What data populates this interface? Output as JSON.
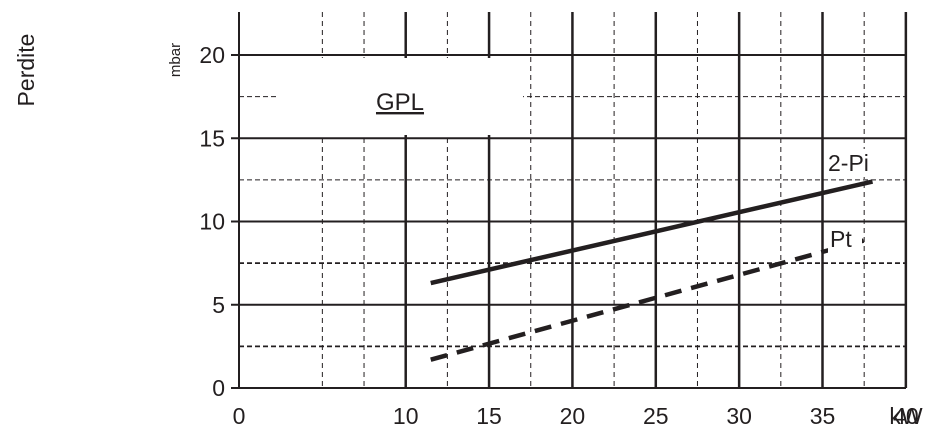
{
  "chart_data": {
    "type": "line",
    "title": "",
    "ylabel_outer": "Perdite",
    "ylabel_unit": "mbar",
    "xlabel": "kW",
    "region_label": "GPL",
    "xlim": [
      0,
      40
    ],
    "ylim": [
      0,
      22.5
    ],
    "x_ticks": [
      0,
      10,
      15,
      20,
      25,
      30,
      35,
      40
    ],
    "x_tick_labels": [
      "0",
      "10",
      "15",
      "20",
      "25",
      "30",
      "35",
      "40"
    ],
    "y_ticks": [
      0,
      5,
      10,
      15,
      20
    ],
    "y_tick_labels": [
      "0",
      "5",
      "10",
      "15",
      "20"
    ],
    "grid": true,
    "series": [
      {
        "name": "2-Pi",
        "style": "solid",
        "x": [
          11.5,
          38
        ],
        "y": [
          6.3,
          12.4
        ]
      },
      {
        "name": "Pt",
        "style": "dashed",
        "x": [
          11.5,
          38
        ],
        "y": [
          1.7,
          9.0
        ]
      }
    ],
    "colors": {
      "line": "#231f20",
      "background": "#ffffff"
    }
  }
}
